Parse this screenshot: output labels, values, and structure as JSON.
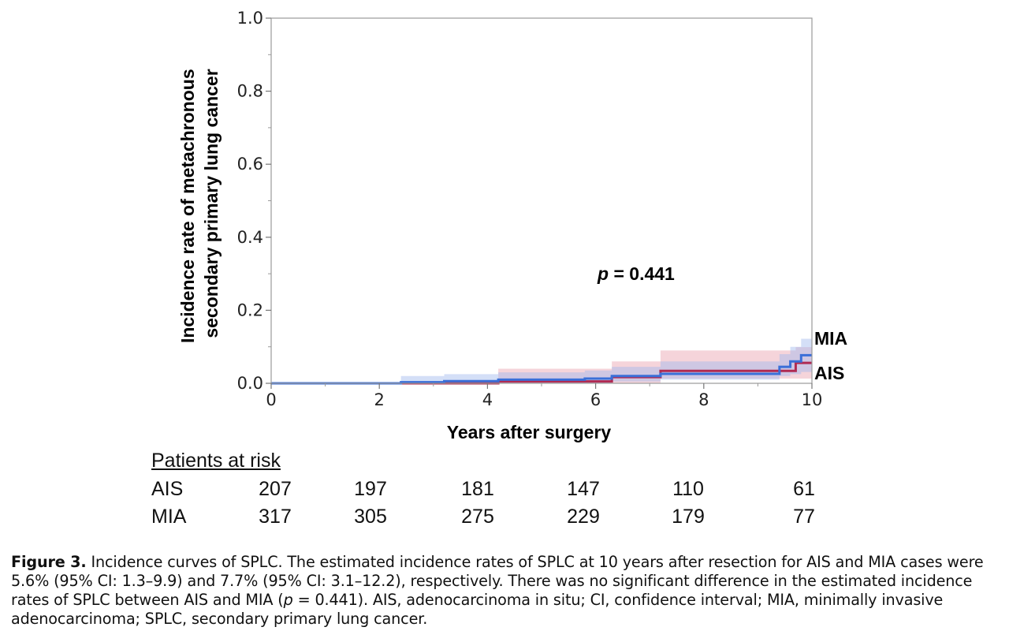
{
  "chart_data": {
    "type": "line",
    "subtype": "cumulative-incidence-step",
    "title": "",
    "xlabel": "Years after surgery",
    "ylabel": "Incidence rate of metachronous secondary primary lung cancer",
    "ylabel_lines": [
      "Incidence rate of metachronous",
      "secondary primary lung cancer"
    ],
    "xlim": [
      0,
      10
    ],
    "ylim": [
      0,
      1.0
    ],
    "xticks": [
      0,
      2,
      4,
      6,
      8,
      10
    ],
    "xtick_labels": [
      "0",
      "2",
      "4",
      "6",
      "8",
      "10"
    ],
    "yticks": [
      0,
      0.2,
      0.4,
      0.6,
      0.8,
      1.0
    ],
    "ytick_labels": [
      "0.0",
      "0.2",
      "0.4",
      "0.6",
      "0.8",
      "1.0"
    ],
    "grid": false,
    "annotation": {
      "prefix": "p",
      "text": " = 0.441"
    },
    "series": [
      {
        "name": "AIS",
        "color": "#b02a52",
        "band_color": "#e8a0ae",
        "x": [
          0,
          4.2,
          6.3,
          7.2,
          9.7,
          10
        ],
        "y": [
          0,
          0.005,
          0.017,
          0.034,
          0.056,
          0.056
        ],
        "upper": [
          0,
          0.04,
          0.06,
          0.09,
          0.099,
          0.099
        ],
        "lower": [
          0,
          0.0,
          0.0,
          0.013,
          0.013,
          0.013
        ]
      },
      {
        "name": "MIA",
        "color": "#3a6fd8",
        "band_color": "#9fb8ee",
        "x": [
          0,
          2.4,
          3.2,
          4.2,
          5.8,
          6.3,
          7.2,
          9.4,
          9.6,
          9.8,
          10
        ],
        "y": [
          0,
          0.003,
          0.006,
          0.01,
          0.013,
          0.02,
          0.026,
          0.045,
          0.06,
          0.077,
          0.077
        ],
        "upper": [
          0,
          0.02,
          0.025,
          0.03,
          0.035,
          0.045,
          0.06,
          0.08,
          0.1,
          0.122,
          0.122
        ],
        "lower": [
          0,
          0.0,
          0.0,
          0.0,
          0.0,
          0.005,
          0.01,
          0.02,
          0.025,
          0.031,
          0.031
        ]
      }
    ]
  },
  "risk_table": {
    "title": "Patients at risk",
    "rows": [
      {
        "name": "AIS",
        "values": [
          "207",
          "197",
          "181",
          "147",
          "110",
          "61"
        ]
      },
      {
        "name": "MIA",
        "values": [
          "317",
          "305",
          "275",
          "229",
          "179",
          "77"
        ]
      }
    ]
  },
  "caption": {
    "label": "Figure 3.",
    "text1": " Incidence curves of SPLC. The estimated incidence rates of SPLC at 10 years after resection for AIS and MIA cases were 5.6% (95% CI: 1.3–9.9) and 7.7% (95% CI: 3.1–12.2), respectively. There was no significant difference in the estimated incidence rates of SPLC between AIS and MIA (",
    "pvar": "p",
    "text2": " = 0.441). AIS, adenocarcinoma in situ; CI, confidence interval; MIA, minimally invasive adenocarcinoma; SPLC, secondary primary lung cancer."
  }
}
